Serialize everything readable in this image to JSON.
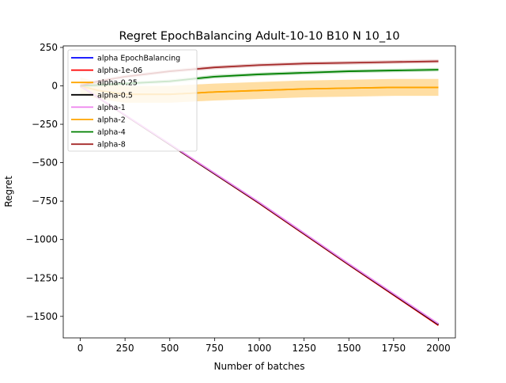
{
  "chart_data": {
    "type": "line",
    "title": "Regret EpochBalancing Adult-10-10 B10 N 10_10",
    "xlabel": "Number of batches",
    "ylabel": "Regret",
    "xlim": [
      -95,
      2095
    ],
    "ylim": [
      -1640,
      260
    ],
    "xticks": [
      0,
      250,
      500,
      750,
      1000,
      1250,
      1500,
      1750,
      2000
    ],
    "yticks": [
      250,
      0,
      -250,
      -500,
      -750,
      -1000,
      -1250,
      -1500
    ],
    "grid": false,
    "legend_position": "upper-left",
    "series": [
      {
        "name": "alpha EpochBalancing",
        "color": "#0000ff",
        "x": [
          0,
          500,
          1000,
          1500,
          2000
        ],
        "y": [
          0,
          -380,
          -760,
          -1160,
          -1550
        ],
        "band": 4
      },
      {
        "name": "alpha-1e-06",
        "color": "#ff0000",
        "x": [
          0,
          500,
          1000,
          1500,
          2000
        ],
        "y": [
          0,
          -382,
          -765,
          -1165,
          -1558
        ],
        "band": 6
      },
      {
        "name": "alpha-0.25",
        "color": "#ffa500",
        "x": [
          0,
          100,
          250,
          500,
          750,
          1000,
          1250,
          1500,
          1750,
          2000
        ],
        "y": [
          0,
          -30,
          -55,
          -55,
          -40,
          -30,
          -20,
          -15,
          -10,
          -10
        ],
        "band": 55
      },
      {
        "name": "alpha-0.5",
        "color": "#000000",
        "x": [
          0,
          500,
          1000,
          1500,
          2000
        ],
        "y": [
          0,
          -381,
          -762,
          -1162,
          -1553
        ],
        "band": 4
      },
      {
        "name": "alpha-1",
        "color": "#ee82ee",
        "x": [
          0,
          500,
          1000,
          1500,
          2000
        ],
        "y": [
          0,
          -378,
          -758,
          -1158,
          -1548
        ],
        "band": 5
      },
      {
        "name": "alpha-2",
        "color": "#ffa500",
        "x": [
          0,
          100,
          250,
          500,
          750,
          1000,
          1250,
          1500,
          1750,
          2000
        ],
        "y": [
          0,
          -30,
          -55,
          -55,
          -40,
          -30,
          -20,
          -15,
          -10,
          -10
        ],
        "band": 55
      },
      {
        "name": "alpha-4",
        "color": "#008000",
        "x": [
          0,
          100,
          250,
          500,
          750,
          1000,
          1250,
          1500,
          1750,
          2000
        ],
        "y": [
          0,
          5,
          15,
          30,
          60,
          75,
          85,
          95,
          100,
          105
        ],
        "band": 12
      },
      {
        "name": "alpha-8",
        "color": "#a52a2a",
        "x": [
          0,
          100,
          250,
          500,
          750,
          1000,
          1250,
          1500,
          1750,
          2000
        ],
        "y": [
          0,
          30,
          60,
          95,
          120,
          135,
          145,
          150,
          155,
          160
        ],
        "band": 12
      }
    ]
  }
}
